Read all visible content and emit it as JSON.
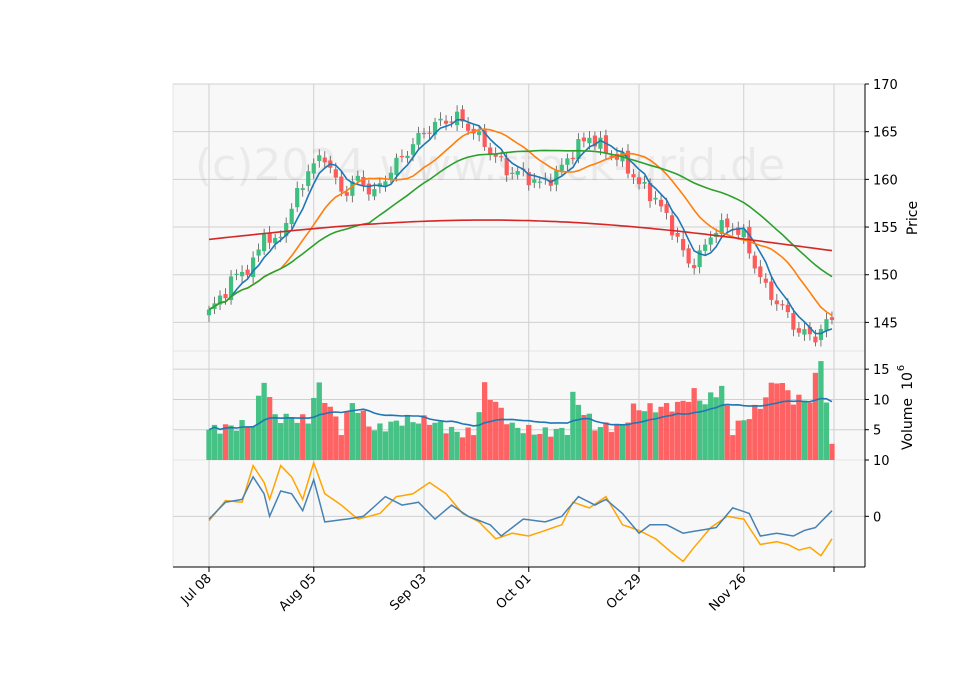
{
  "chart_data": {
    "type": "candlestick",
    "watermark": "(c)2024 www.stock-grid.de",
    "x_ticks": [
      "Jul 08",
      "Aug 05",
      "Sep 03",
      "Oct 01",
      "Oct 29",
      "Nov 26"
    ],
    "price_axis": {
      "label": "Price",
      "ylim": [
        142,
        170
      ],
      "ticks": [
        145,
        150,
        155,
        160,
        165,
        170
      ]
    },
    "volume_axis": {
      "label": "Volume",
      "exponent_label": "10",
      "exponent": "6",
      "ylim": [
        0,
        18
      ],
      "ticks": [
        5,
        10,
        15
      ]
    },
    "oscillator_axis": {
      "ylim": [
        -9,
        10
      ],
      "ticks": [
        0,
        10
      ]
    },
    "grid": true,
    "colors": {
      "up": "#3cbf7f",
      "down": "#ff5a5a",
      "ma_fast": "#1f77b4",
      "ma_mid": "#ff7f0e",
      "ma_slow": "#2ca02c",
      "ma_long": "#d62728",
      "osc_a": "#4682b4",
      "osc_b": "#ffa500",
      "vol_ma": "#1f77b4",
      "panel_bg": "#f8f8f8",
      "grid": "#d0d0d0"
    },
    "close_anchors": [
      [
        0,
        146
      ],
      [
        5,
        150
      ],
      [
        8,
        151
      ],
      [
        10,
        154.5
      ],
      [
        12,
        153
      ],
      [
        15,
        157
      ],
      [
        18,
        161
      ],
      [
        21,
        162.5
      ],
      [
        24,
        158.5
      ],
      [
        27,
        160
      ],
      [
        30,
        158.5
      ],
      [
        33,
        161
      ],
      [
        36,
        163
      ],
      [
        39,
        165
      ],
      [
        42,
        166
      ],
      [
        45,
        166.5
      ],
      [
        48,
        165
      ],
      [
        51,
        163
      ],
      [
        54,
        161
      ],
      [
        57,
        160.5
      ],
      [
        60,
        159.5
      ],
      [
        63,
        160.5
      ],
      [
        66,
        163
      ],
      [
        69,
        164.5
      ],
      [
        72,
        163
      ],
      [
        75,
        162
      ],
      [
        78,
        159.5
      ],
      [
        81,
        158
      ],
      [
        84,
        155
      ],
      [
        87,
        151
      ],
      [
        89,
        152
      ],
      [
        92,
        155
      ],
      [
        95,
        155
      ],
      [
        97,
        154
      ],
      [
        99,
        151
      ],
      [
        101,
        148.5
      ],
      [
        104,
        146.5
      ],
      [
        107,
        144
      ],
      [
        110,
        143.5
      ],
      [
        113,
        145.5
      ]
    ],
    "volume_anchors": [
      [
        0,
        5
      ],
      [
        8,
        6
      ],
      [
        10,
        13.5
      ],
      [
        12,
        7
      ],
      [
        15,
        7
      ],
      [
        18,
        6.5
      ],
      [
        19,
        10.5
      ],
      [
        20,
        12
      ],
      [
        24,
        5
      ],
      [
        26,
        9.5
      ],
      [
        30,
        5
      ],
      [
        35,
        6.5
      ],
      [
        40,
        6.5
      ],
      [
        45,
        4.5
      ],
      [
        48,
        4.5
      ],
      [
        50,
        12
      ],
      [
        55,
        5.5
      ],
      [
        60,
        4.5
      ],
      [
        65,
        5
      ],
      [
        66,
        10.5
      ],
      [
        70,
        5.5
      ],
      [
        75,
        5.5
      ],
      [
        77,
        8.5
      ],
      [
        80,
        8.5
      ],
      [
        85,
        9
      ],
      [
        88,
        11
      ],
      [
        90,
        9.5
      ],
      [
        93,
        12
      ],
      [
        95,
        5
      ],
      [
        100,
        9
      ],
      [
        103,
        13.5
      ],
      [
        106,
        10
      ],
      [
        109,
        10
      ],
      [
        111,
        17
      ],
      [
        113,
        2
      ]
    ],
    "osc_a_anchors": [
      [
        0,
        -0.5
      ],
      [
        3,
        2.5
      ],
      [
        6,
        3
      ],
      [
        8,
        7
      ],
      [
        10,
        4
      ],
      [
        11,
        0
      ],
      [
        13,
        4.5
      ],
      [
        15,
        4
      ],
      [
        17,
        1
      ],
      [
        19,
        6.5
      ],
      [
        21,
        -1
      ],
      [
        25,
        -0.5
      ],
      [
        28,
        0
      ],
      [
        32,
        3.5
      ],
      [
        35,
        2
      ],
      [
        38,
        2.5
      ],
      [
        41,
        -0.5
      ],
      [
        44,
        2
      ],
      [
        47,
        0
      ],
      [
        51,
        -1.5
      ],
      [
        53,
        -3.5
      ],
      [
        57,
        -0.5
      ],
      [
        61,
        -1
      ],
      [
        64,
        0
      ],
      [
        67,
        3.5
      ],
      [
        70,
        2
      ],
      [
        72,
        3
      ],
      [
        75,
        0.5
      ],
      [
        78,
        -3
      ],
      [
        80,
        -1.5
      ],
      [
        83,
        -1.5
      ],
      [
        86,
        -3
      ],
      [
        89,
        -2.5
      ],
      [
        92,
        -2
      ],
      [
        95,
        1.5
      ],
      [
        98,
        0.5
      ],
      [
        100,
        -3.5
      ],
      [
        103,
        -3
      ],
      [
        106,
        -3.5
      ],
      [
        108,
        -2.5
      ],
      [
        110,
        -2
      ],
      [
        113,
        1
      ]
    ],
    "osc_b_anchors": [
      [
        0,
        -0.8
      ],
      [
        3,
        2.8
      ],
      [
        6,
        2.5
      ],
      [
        8,
        9
      ],
      [
        10,
        6
      ],
      [
        11,
        3
      ],
      [
        13,
        9
      ],
      [
        15,
        7
      ],
      [
        17,
        3
      ],
      [
        19,
        9.5
      ],
      [
        21,
        4
      ],
      [
        24,
        2
      ],
      [
        27,
        -0.5
      ],
      [
        31,
        0.5
      ],
      [
        34,
        3.5
      ],
      [
        37,
        4
      ],
      [
        40,
        6
      ],
      [
        43,
        4
      ],
      [
        46,
        0.5
      ],
      [
        49,
        -1
      ],
      [
        52,
        -4
      ],
      [
        55,
        -3
      ],
      [
        58,
        -3.5
      ],
      [
        61,
        -2.5
      ],
      [
        64,
        -1.5
      ],
      [
        66,
        2.5
      ],
      [
        69,
        1.5
      ],
      [
        72,
        3.5
      ],
      [
        75,
        -1.5
      ],
      [
        78,
        -2.5
      ],
      [
        81,
        -4
      ],
      [
        84,
        -6.5
      ],
      [
        86,
        -8
      ],
      [
        88,
        -5.5
      ],
      [
        91,
        -2
      ],
      [
        94,
        0
      ],
      [
        97,
        -0.5
      ],
      [
        100,
        -5
      ],
      [
        103,
        -4.5
      ],
      [
        105,
        -5
      ],
      [
        107,
        -6
      ],
      [
        109,
        -5.5
      ],
      [
        111,
        -7
      ],
      [
        113,
        -4
      ]
    ]
  }
}
